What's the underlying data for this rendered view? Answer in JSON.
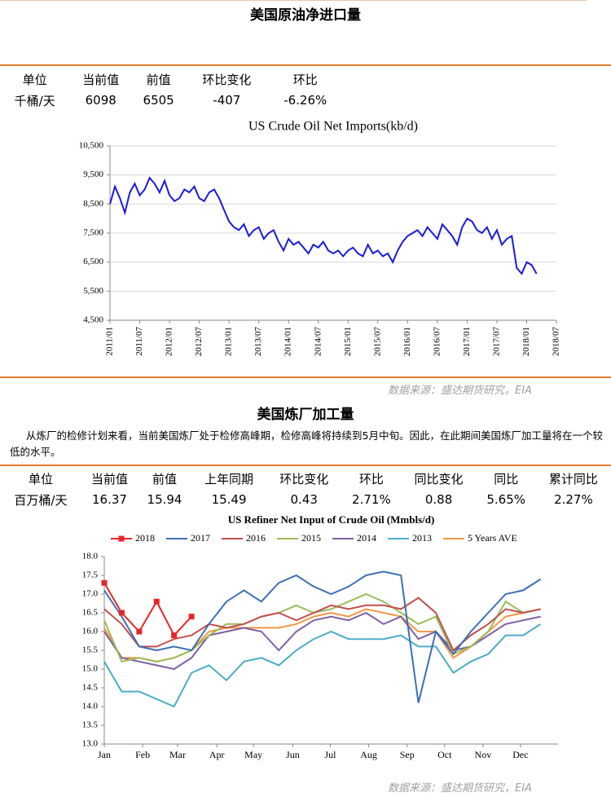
{
  "section1": {
    "title": "美国原油净进口量",
    "table": {
      "headers": [
        "单位",
        "当前值",
        "前值",
        "环比变化",
        "环比"
      ],
      "row": [
        "千桶/天",
        "6098",
        "6505",
        "-407",
        "-6.26%"
      ]
    },
    "source": "数据来源：盛达期货研究，EIA"
  },
  "section2": {
    "title": "美国炼厂加工量",
    "paragraph": "从炼厂的检修计划来看，当前美国炼厂处于检修高峰期，检修高峰将持续到5月中旬。因此，在此期间美国炼厂加工量将在一个较低的水平。",
    "table": {
      "headers": [
        "单位",
        "当前值",
        "前值",
        "上年同期",
        "环比变化",
        "环比",
        "同比变化",
        "同比",
        "累计同比"
      ],
      "row": [
        "百万桶/天",
        "16.37",
        "15.94",
        "15.49",
        "0.43",
        "2.71%",
        "0.88",
        "5.65%",
        "2.27%"
      ]
    },
    "source": "数据来源：盛达期货研究，EIA"
  },
  "chart_data": [
    {
      "type": "line",
      "title": "US Crude Oil Net Imports(kb/d)",
      "x": [
        "2011/01",
        "2011/02",
        "2011/03",
        "2011/04",
        "2011/05",
        "2011/06",
        "2011/07",
        "2011/08",
        "2011/09",
        "2011/10",
        "2011/11",
        "2011/12",
        "2012/01",
        "2012/02",
        "2012/03",
        "2012/04",
        "2012/05",
        "2012/06",
        "2012/07",
        "2012/08",
        "2012/09",
        "2012/10",
        "2012/11",
        "2012/12",
        "2013/01",
        "2013/02",
        "2013/03",
        "2013/04",
        "2013/05",
        "2013/06",
        "2013/07",
        "2013/08",
        "2013/09",
        "2013/10",
        "2013/11",
        "2013/12",
        "2014/01",
        "2014/02",
        "2014/03",
        "2014/04",
        "2014/05",
        "2014/06",
        "2014/07",
        "2014/08",
        "2014/09",
        "2014/10",
        "2014/11",
        "2014/12",
        "2015/01",
        "2015/02",
        "2015/03",
        "2015/04",
        "2015/05",
        "2015/06",
        "2015/07",
        "2015/08",
        "2015/09",
        "2015/10",
        "2015/11",
        "2015/12",
        "2016/01",
        "2016/02",
        "2016/03",
        "2016/04",
        "2016/05",
        "2016/06",
        "2016/07",
        "2016/08",
        "2016/09",
        "2016/10",
        "2016/11",
        "2016/12",
        "2017/01",
        "2017/02",
        "2017/03",
        "2017/04",
        "2017/05",
        "2017/06",
        "2017/07",
        "2017/08",
        "2017/09",
        "2017/10",
        "2017/11",
        "2017/12",
        "2018/01",
        "2018/02",
        "2018/03"
      ],
      "series": [
        {
          "name": null,
          "color": "#1a1adb",
          "values": [
            8500,
            9100,
            8700,
            8200,
            8900,
            9200,
            8800,
            9000,
            9400,
            9200,
            8900,
            9300,
            8800,
            8600,
            8700,
            9000,
            8900,
            9100,
            8700,
            8600,
            8900,
            9000,
            8700,
            8300,
            7900,
            7700,
            7600,
            7800,
            7400,
            7600,
            7700,
            7300,
            7500,
            7600,
            7200,
            6900,
            7300,
            7100,
            7200,
            7000,
            6800,
            7100,
            7000,
            7200,
            6900,
            6800,
            6900,
            6700,
            6900,
            7000,
            6800,
            6700,
            7100,
            6800,
            6900,
            6700,
            6800,
            6500,
            6900,
            7200,
            7400,
            7500,
            7600,
            7400,
            7700,
            7500,
            7300,
            7800,
            7600,
            7400,
            7100,
            7700,
            8000,
            7900,
            7600,
            7500,
            7700,
            7300,
            7600,
            7100,
            7300,
            7400,
            6300,
            6100,
            6500,
            6400,
            6100
          ]
        }
      ],
      "xlim": [
        "2011/01",
        "2018/07"
      ],
      "xticks": [
        "2011/01",
        "2011/07",
        "2012/01",
        "2012/07",
        "2013/01",
        "2013/07",
        "2014/01",
        "2014/07",
        "2015/01",
        "2015/07",
        "2016/01",
        "2016/07",
        "2017/01",
        "2017/07",
        "2018/01",
        "2018/07"
      ],
      "ylim": [
        4500,
        10500
      ],
      "yticks": [
        {
          "value": 4500,
          "label": "4,500"
        },
        {
          "value": 5500,
          "label": "5,500"
        },
        {
          "value": 6500,
          "label": "6,500"
        },
        {
          "value": 7500,
          "label": "7,500"
        },
        {
          "value": 8500,
          "label": "8,500"
        },
        {
          "value": 9500,
          "label": "9,500"
        },
        {
          "value": 10500,
          "label": "10,500"
        }
      ],
      "grid": true
    },
    {
      "type": "line",
      "title": "US Refiner Net Input of Crude Oil (Mmbls/d)",
      "x": [
        1,
        3,
        5,
        7,
        9,
        11,
        13,
        15,
        17,
        19,
        21,
        23,
        25,
        27,
        29,
        31,
        33,
        35,
        37,
        39,
        41,
        43,
        45,
        47,
        49,
        51
      ],
      "series": [
        {
          "name": "2018",
          "color": "#e8262a",
          "marker": "square",
          "values": [
            17.3,
            16.5,
            16.0,
            16.8,
            15.9,
            16.4,
            null,
            null,
            null,
            null,
            null,
            null,
            null,
            null,
            null,
            null,
            null,
            null,
            null,
            null,
            null,
            null,
            null,
            null,
            null,
            null
          ]
        },
        {
          "name": "2017",
          "color": "#3d6fb5",
          "values": [
            17.1,
            16.4,
            15.6,
            15.5,
            15.6,
            15.5,
            16.2,
            16.8,
            17.1,
            16.8,
            17.3,
            17.5,
            17.2,
            17.0,
            17.2,
            17.5,
            17.6,
            17.5,
            14.1,
            16.0,
            15.4,
            16.0,
            16.5,
            17.0,
            17.1,
            17.4
          ]
        },
        {
          "name": "2016",
          "color": "#c0504d",
          "values": [
            16.6,
            16.2,
            15.6,
            15.6,
            15.8,
            15.9,
            16.2,
            16.1,
            16.2,
            16.4,
            16.5,
            16.3,
            16.5,
            16.7,
            16.6,
            16.7,
            16.7,
            16.6,
            16.9,
            16.5,
            15.5,
            15.9,
            16.2,
            16.6,
            16.5,
            16.6
          ]
        },
        {
          "name": "2015",
          "color": "#9bbb59",
          "values": [
            16.3,
            15.2,
            15.3,
            15.2,
            15.3,
            15.5,
            15.9,
            16.2,
            16.2,
            16.4,
            16.5,
            16.7,
            16.5,
            16.6,
            16.8,
            17.0,
            16.8,
            16.5,
            16.2,
            16.4,
            15.4,
            15.6,
            16.0,
            16.8,
            16.5,
            16.6
          ]
        },
        {
          "name": "2014",
          "color": "#7f5fa5",
          "values": [
            16.0,
            15.3,
            15.2,
            15.1,
            15.0,
            15.3,
            15.9,
            16.0,
            16.1,
            16.0,
            15.5,
            16.0,
            16.3,
            16.4,
            16.3,
            16.5,
            16.2,
            16.4,
            15.8,
            16.0,
            15.5,
            15.6,
            15.9,
            16.2,
            16.3,
            16.4
          ]
        },
        {
          "name": "2013",
          "color": "#4bacc6",
          "values": [
            15.2,
            14.4,
            14.4,
            14.2,
            14.0,
            14.9,
            15.1,
            14.7,
            15.2,
            15.3,
            15.1,
            15.5,
            15.8,
            16.0,
            15.8,
            15.8,
            15.8,
            15.9,
            15.6,
            15.6,
            14.9,
            15.2,
            15.4,
            15.9,
            15.9,
            16.2
          ]
        },
        {
          "name": "5 Years AVE",
          "color": "#f79646",
          "values": [
            16.1,
            15.3,
            15.3,
            15.2,
            15.3,
            15.5,
            16.0,
            16.1,
            16.1,
            16.1,
            16.1,
            16.2,
            16.4,
            16.5,
            16.4,
            16.6,
            16.5,
            16.4,
            16.0,
            16.0,
            15.3,
            15.6,
            16.0,
            16.4,
            16.5,
            16.6
          ]
        }
      ],
      "xlim": [
        1,
        53
      ],
      "xticks": [
        {
          "value": 1,
          "label": "Jan"
        },
        {
          "value": 5.4,
          "label": "Feb"
        },
        {
          "value": 9.4,
          "label": "Mar"
        },
        {
          "value": 13.9,
          "label": "Apr"
        },
        {
          "value": 18.1,
          "label": "May"
        },
        {
          "value": 22.6,
          "label": "Jun"
        },
        {
          "value": 26.9,
          "label": "Jul"
        },
        {
          "value": 31.3,
          "label": "Aug"
        },
        {
          "value": 35.7,
          "label": "Sep"
        },
        {
          "value": 40,
          "label": "Oct"
        },
        {
          "value": 44.4,
          "label": "Nov"
        },
        {
          "value": 48.7,
          "label": "Dec"
        }
      ],
      "ylim": [
        13,
        18
      ],
      "yticks": [
        {
          "value": 13,
          "label": "13.0"
        },
        {
          "value": 13.5,
          "label": "13.5"
        },
        {
          "value": 14,
          "label": "14.0"
        },
        {
          "value": 14.5,
          "label": "14.5"
        },
        {
          "value": 15,
          "label": "15.0"
        },
        {
          "value": 15.5,
          "label": "15.5"
        },
        {
          "value": 16,
          "label": "16.0"
        },
        {
          "value": 16.5,
          "label": "16.5"
        },
        {
          "value": 17,
          "label": "17.0"
        },
        {
          "value": 17.5,
          "label": "17.5"
        },
        {
          "value": 18,
          "label": "18.0"
        }
      ],
      "grid": false,
      "legend": "top"
    }
  ]
}
